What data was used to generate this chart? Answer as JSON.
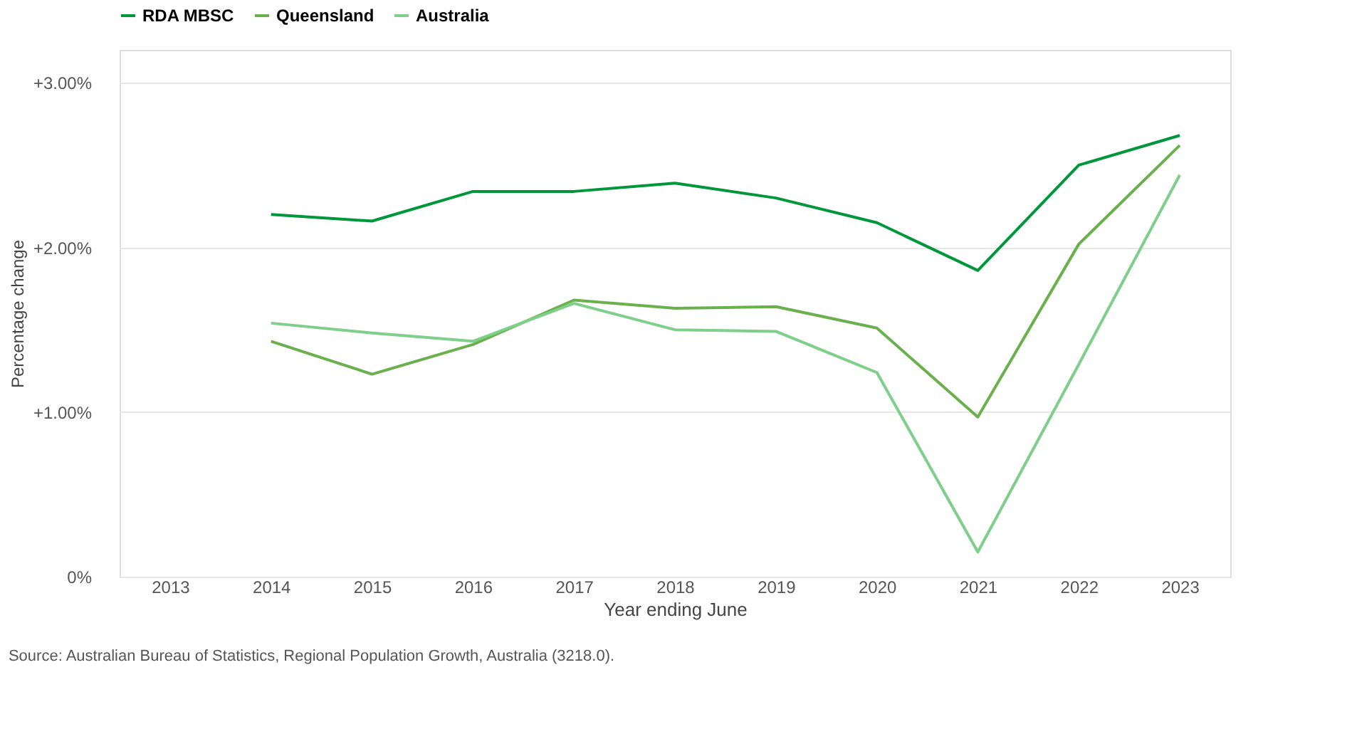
{
  "chart_data": {
    "type": "line",
    "categories": [
      "2013",
      "2014",
      "2015",
      "2016",
      "2017",
      "2018",
      "2019",
      "2020",
      "2021",
      "2022",
      "2023"
    ],
    "series": [
      {
        "name": "RDA MBSC",
        "color": "#00973a",
        "values": [
          null,
          2.2,
          2.16,
          2.34,
          2.34,
          2.39,
          2.3,
          2.15,
          1.86,
          2.5,
          2.68
        ]
      },
      {
        "name": "Queensland",
        "color": "#6ab04c",
        "values": [
          null,
          1.43,
          1.23,
          1.41,
          1.68,
          1.63,
          1.64,
          1.51,
          0.97,
          2.02,
          2.62
        ]
      },
      {
        "name": "Australia",
        "color": "#7dcf8a",
        "values": [
          null,
          1.54,
          1.48,
          1.43,
          1.66,
          1.5,
          1.49,
          1.24,
          0.15,
          1.29,
          2.44
        ]
      }
    ],
    "xlabel": "Year ending June",
    "ylabel": "Percentage change",
    "ylim": [
      0,
      3.2
    ],
    "yticks": [
      {
        "value": 0,
        "label": "0%"
      },
      {
        "value": 1,
        "label": "+1.00%"
      },
      {
        "value": 2,
        "label": "+2.00%"
      },
      {
        "value": 3,
        "label": "+3.00%"
      }
    ],
    "grid": "y",
    "legend": "top left",
    "marker": "none",
    "line_style": "solid",
    "annotations": [
      "Source: Australian Bureau of Statistics, Regional Population Growth, Australia (3218.0)."
    ]
  }
}
